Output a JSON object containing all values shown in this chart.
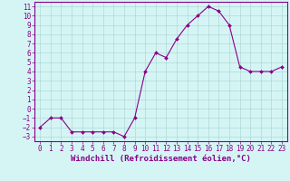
{
  "hours": [
    0,
    1,
    2,
    3,
    4,
    5,
    6,
    7,
    8,
    9,
    10,
    11,
    12,
    13,
    14,
    15,
    16,
    17,
    18,
    19,
    20,
    21,
    22,
    23
  ],
  "values": [
    -2,
    -1,
    -1,
    -2.5,
    -2.5,
    -2.5,
    -2.5,
    -2.5,
    -3,
    -1,
    4,
    6,
    5.5,
    7.5,
    9,
    10,
    11,
    10.5,
    9,
    4.5,
    4,
    4,
    4,
    4.5
  ],
  "line_color": "#880088",
  "marker_color": "#880088",
  "bg_color": "#d5f5f5",
  "grid_color": "#b0d8d8",
  "xlabel": "Windchill (Refroidissement éolien,°C)",
  "ylim": [
    -3.5,
    11.5
  ],
  "xlim": [
    -0.5,
    23.5
  ],
  "yticks": [
    -3,
    -2,
    -1,
    0,
    1,
    2,
    3,
    4,
    5,
    6,
    7,
    8,
    9,
    10,
    11
  ],
  "xticks": [
    0,
    1,
    2,
    3,
    4,
    5,
    6,
    7,
    8,
    9,
    10,
    11,
    12,
    13,
    14,
    15,
    16,
    17,
    18,
    19,
    20,
    21,
    22,
    23
  ],
  "xlabel_fontsize": 6.5,
  "tick_fontsize": 5.5,
  "line_width": 0.8,
  "marker_size": 2.0
}
